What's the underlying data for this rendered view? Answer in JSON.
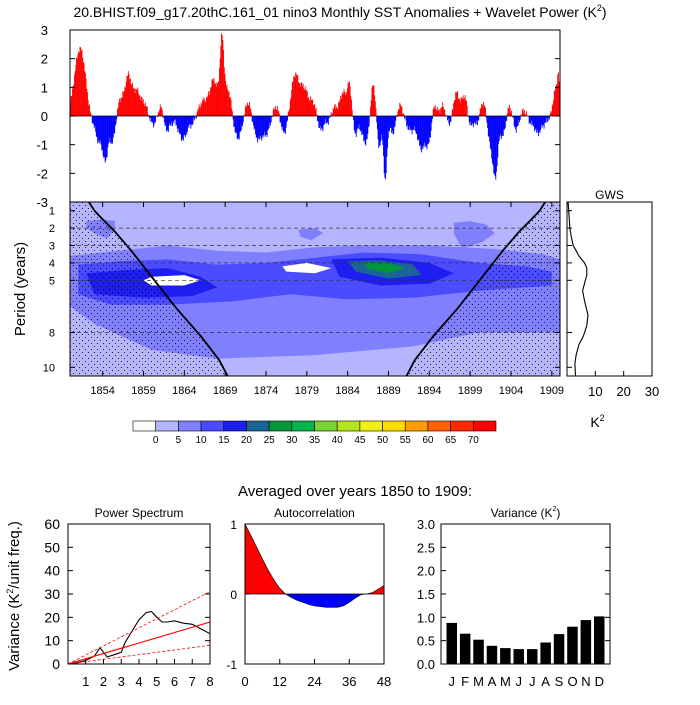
{
  "title": "20.BHIST.f09_g17.20thC.161_01 nino3 Monthly SST Anomalies + Wavelet Power (K",
  "title_sup": "2",
  "title_end": ")",
  "chart_data": [
    {
      "id": "sst_anomalies",
      "type": "area",
      "title": "nino3 Monthly SST Anomalies",
      "xlim": [
        1850,
        1910
      ],
      "ylim": [
        -3,
        3
      ],
      "yticks": [
        3,
        2,
        1,
        0,
        -1,
        -2,
        -3
      ],
      "positive_color": "#ff0000",
      "negative_color": "#0000ff",
      "events": [
        [
          1850.4,
          0.25,
          0.6
        ],
        [
          1850.9,
          1.0,
          0.7
        ],
        [
          1851.5,
          1.7,
          0.8
        ],
        [
          1852.6,
          -0.25,
          0.7
        ],
        [
          1853.5,
          -0.8,
          0.5
        ],
        [
          1854.3,
          -1.5,
          0.45
        ],
        [
          1855.2,
          -0.9,
          0.5
        ],
        [
          1856.2,
          0.6,
          0.6
        ],
        [
          1857.1,
          1.2,
          0.5
        ],
        [
          1858.1,
          0.9,
          0.8
        ],
        [
          1859.2,
          0.3,
          0.5
        ],
        [
          1860.2,
          -0.3,
          0.6
        ],
        [
          1861.1,
          0.35,
          0.5
        ],
        [
          1861.8,
          -0.55,
          0.4
        ],
        [
          1862.4,
          -0.2,
          0.3
        ],
        [
          1863.8,
          -0.8,
          0.8
        ],
        [
          1865.0,
          -0.2,
          0.4
        ],
        [
          1866.3,
          0.5,
          0.7
        ],
        [
          1867.6,
          1.25,
          0.7
        ],
        [
          1868.6,
          2.5,
          0.35
        ],
        [
          1869.4,
          1.0,
          0.6
        ],
        [
          1870.5,
          -0.8,
          0.8
        ],
        [
          1871.8,
          0.6,
          0.6
        ],
        [
          1873.0,
          -0.8,
          0.8
        ],
        [
          1874.1,
          -0.5,
          0.6
        ],
        [
          1875.2,
          0.35,
          0.5
        ],
        [
          1876.2,
          -0.6,
          0.5
        ],
        [
          1877.5,
          1.3,
          0.6
        ],
        [
          1878.6,
          1.0,
          0.8
        ],
        [
          1879.8,
          0.4,
          0.5
        ],
        [
          1880.7,
          -0.5,
          0.5
        ],
        [
          1881.6,
          -0.2,
          0.4
        ],
        [
          1882.4,
          0.3,
          0.5
        ],
        [
          1883.4,
          0.8,
          0.5
        ],
        [
          1884.2,
          1.1,
          0.4
        ],
        [
          1884.9,
          -0.6,
          0.4
        ],
        [
          1886.3,
          -1.0,
          0.8
        ],
        [
          1887.1,
          1.5,
          0.5
        ],
        [
          1887.8,
          -1.2,
          0.4
        ],
        [
          1888.6,
          -2.2,
          0.3
        ],
        [
          1889.5,
          -0.6,
          0.5
        ],
        [
          1890.4,
          0.4,
          0.5
        ],
        [
          1891.7,
          -0.5,
          0.7
        ],
        [
          1893.0,
          -1.1,
          0.6
        ],
        [
          1893.9,
          -0.9,
          0.5
        ],
        [
          1894.6,
          0.45,
          0.4
        ],
        [
          1895.6,
          0.35,
          0.4
        ],
        [
          1896.5,
          -0.3,
          0.4
        ],
        [
          1897.3,
          0.8,
          0.5
        ],
        [
          1898.3,
          0.7,
          0.5
        ],
        [
          1899.0,
          -0.4,
          0.4
        ],
        [
          1899.8,
          -0.3,
          0.4
        ],
        [
          1900.6,
          0.5,
          0.5
        ],
        [
          1901.5,
          -1.0,
          0.5
        ],
        [
          1902.1,
          -1.9,
          0.4
        ],
        [
          1903.0,
          -0.7,
          0.5
        ],
        [
          1903.8,
          0.4,
          0.5
        ],
        [
          1904.6,
          -0.5,
          0.5
        ],
        [
          1905.5,
          0.2,
          0.5
        ],
        [
          1906.4,
          -0.2,
          0.4
        ],
        [
          1907.3,
          -0.6,
          0.6
        ],
        [
          1908.2,
          -0.2,
          0.4
        ],
        [
          1909.4,
          0.9,
          0.35
        ],
        [
          1909.8,
          1.3,
          0.2
        ]
      ]
    },
    {
      "id": "wavelet_power",
      "type": "heatmap",
      "ylabel": "Period (years)",
      "xlim": [
        1850,
        1910
      ],
      "ylim": [
        0.5,
        10.5
      ],
      "xticks": [
        1854,
        1859,
        1864,
        1869,
        1874,
        1879,
        1884,
        1889,
        1894,
        1899,
        1904,
        1909
      ],
      "yticks": [
        1,
        2,
        3,
        4,
        5,
        8,
        10
      ],
      "dashed_levels": [
        2,
        3,
        4,
        5,
        8
      ],
      "power_regions": [
        {
          "level": 5,
          "polygon": [
            [
              1850,
              3.6
            ],
            [
              1856,
              3.3
            ],
            [
              1862,
              3.0
            ],
            [
              1868,
              3.3
            ],
            [
              1874,
              3.4
            ],
            [
              1880,
              3.1
            ],
            [
              1886,
              3.0
            ],
            [
              1894,
              3.0
            ],
            [
              1902,
              3.2
            ],
            [
              1908,
              3.5
            ],
            [
              1910,
              3.8
            ],
            [
              1910,
              8.0
            ],
            [
              1900,
              8.0
            ],
            [
              1892,
              8.8
            ],
            [
              1880,
              9.3
            ],
            [
              1868,
              9.5
            ],
            [
              1860,
              9.0
            ],
            [
              1853,
              7.5
            ],
            [
              1850,
              6.5
            ]
          ]
        },
        {
          "level": 5,
          "polygon": [
            [
              1852,
              1.6
            ],
            [
              1854,
              1.5
            ],
            [
              1855.5,
              1.6
            ],
            [
              1855.5,
              2.1
            ],
            [
              1854.5,
              2.6
            ],
            [
              1853,
              2.3
            ],
            [
              1852,
              2.0
            ]
          ]
        },
        {
          "level": 5,
          "polygon": [
            [
              1878,
              2.1
            ],
            [
              1880,
              2.0
            ],
            [
              1881,
              2.3
            ],
            [
              1879.5,
              2.7
            ],
            [
              1878.2,
              2.5
            ]
          ]
        },
        {
          "level": 5,
          "polygon": [
            [
              1897,
              1.7
            ],
            [
              1899,
              1.6
            ],
            [
              1901,
              1.8
            ],
            [
              1902,
              2.3
            ],
            [
              1900.5,
              2.8
            ],
            [
              1898,
              3.2
            ],
            [
              1897,
              2.3
            ]
          ]
        },
        {
          "level": 10,
          "polygon": [
            [
              1851,
              4.1
            ],
            [
              1856,
              3.9
            ],
            [
              1862,
              3.8
            ],
            [
              1868,
              4.1
            ],
            [
              1874,
              4.0
            ],
            [
              1880,
              3.7
            ],
            [
              1886,
              3.4
            ],
            [
              1893,
              3.5
            ],
            [
              1900,
              4.0
            ],
            [
              1906,
              4.2
            ],
            [
              1909,
              4.5
            ],
            [
              1909,
              5.3
            ],
            [
              1900,
              5.6
            ],
            [
              1892,
              6.0
            ],
            [
              1884,
              6.1
            ],
            [
              1877,
              5.8
            ],
            [
              1870,
              6.2
            ],
            [
              1862,
              6.4
            ],
            [
              1855,
              6.4
            ],
            [
              1851,
              5.8
            ]
          ]
        },
        {
          "level": 15,
          "polygon": [
            [
              1852,
              4.6
            ],
            [
              1857,
              4.4
            ],
            [
              1862,
              4.3
            ],
            [
              1866,
              4.8
            ],
            [
              1868,
              5.4
            ],
            [
              1865,
              5.9
            ],
            [
              1859,
              6.0
            ],
            [
              1853,
              5.8
            ]
          ]
        },
        {
          "level": 15,
          "polygon": [
            [
              1882,
              3.8
            ],
            [
              1888,
              3.7
            ],
            [
              1894,
              4.0
            ],
            [
              1897,
              4.6
            ],
            [
              1894,
              5.2
            ],
            [
              1888,
              5.3
            ],
            [
              1883,
              4.8
            ]
          ]
        },
        {
          "level": 20,
          "polygon": [
            [
              1884,
              3.9
            ],
            [
              1888,
              3.85
            ],
            [
              1892,
              4.1
            ],
            [
              1893,
              4.7
            ],
            [
              1889,
              4.9
            ],
            [
              1885,
              4.5
            ]
          ]
        },
        {
          "level": 25,
          "polygon": [
            [
              1886,
              4.0
            ],
            [
              1889,
              4.0
            ],
            [
              1891,
              4.3
            ],
            [
              1889,
              4.6
            ],
            [
              1886.5,
              4.35
            ]
          ]
        }
      ],
      "light_islands": [
        {
          "polygon": [
            [
              1860,
              4.8
            ],
            [
              1864,
              4.7
            ],
            [
              1866,
              5.0
            ],
            [
              1864,
              5.3
            ],
            [
              1860,
              5.3
            ],
            [
              1859,
              5.0
            ]
          ]
        },
        {
          "polygon": [
            [
              1876,
              4.2
            ],
            [
              1879,
              4.0
            ],
            [
              1882,
              4.3
            ],
            [
              1880,
              4.6
            ],
            [
              1876.5,
              4.5
            ]
          ]
        }
      ],
      "cone_of_influence": {
        "left": [
          [
            1852.3,
            0.5
          ],
          [
            1853,
            1.0
          ],
          [
            1854,
            1.5
          ],
          [
            1855.5,
            2.2
          ],
          [
            1857.5,
            3.3
          ],
          [
            1860,
            4.8
          ],
          [
            1863,
            6.6
          ],
          [
            1866,
            8.2
          ],
          [
            1868.3,
            9.6
          ],
          [
            1869.3,
            10.5
          ]
        ],
        "right": [
          [
            1908.2,
            0.5
          ],
          [
            1907.5,
            1.0
          ],
          [
            1906.5,
            1.5
          ],
          [
            1905,
            2.2
          ],
          [
            1903,
            3.3
          ],
          [
            1900.5,
            4.8
          ],
          [
            1897.5,
            6.6
          ],
          [
            1894.5,
            8.2
          ],
          [
            1892.2,
            9.6
          ],
          [
            1891.2,
            10.5
          ]
        ]
      }
    },
    {
      "id": "global_wavelet_spectrum",
      "type": "line",
      "title": "GWS",
      "xlabel": "K",
      "xlabel_sup": "2",
      "xlim": [
        0,
        30
      ],
      "xticks": [
        10,
        20,
        30
      ],
      "ylim": [
        0.5,
        10.5
      ],
      "x": [
        0.4,
        0.6,
        0.8,
        1.0,
        1.5,
        2.2,
        3.2,
        4.2,
        5.2,
        6.2,
        7.0,
        7.0,
        6.3,
        5.5,
        6.2,
        7.4,
        7.0,
        5.8,
        4.2,
        3.2,
        2.8,
        3.0
      ],
      "y": [
        0.5,
        1.0,
        1.5,
        2.0,
        2.5,
        3.0,
        3.3,
        3.6,
        3.8,
        4.0,
        4.3,
        4.7,
        5.1,
        5.6,
        6.2,
        7.0,
        7.6,
        8.2,
        8.7,
        9.3,
        9.8,
        10.5
      ]
    },
    {
      "id": "colorbar",
      "type": "colorbar",
      "labels": [
        "0",
        "5",
        "10",
        "15",
        "20",
        "25",
        "30",
        "35",
        "40",
        "45",
        "50",
        "55",
        "60",
        "65",
        "70"
      ],
      "colors": [
        "#ffffff",
        "#b4b4ff",
        "#8080ff",
        "#4b4bff",
        "#1e1ef0",
        "#1a6496",
        "#00963c",
        "#00b44b",
        "#78d232",
        "#b4e61e",
        "#f0f014",
        "#ffdc00",
        "#ffa000",
        "#ff6400",
        "#ff2800",
        "#ff0000"
      ]
    },
    {
      "id": "power_spectrum",
      "type": "line",
      "title": "Power Spectrum",
      "ylabel": "Variance (K",
      "ylabel_sup": "2",
      "ylabel_end": "/unit freq.)",
      "xlim": [
        0,
        8
      ],
      "ylim": [
        0,
        60
      ],
      "xticks": [
        1,
        2,
        3,
        4,
        5,
        6,
        7,
        8
      ],
      "yticks": [
        0,
        10,
        20,
        30,
        40,
        50,
        60
      ],
      "series": [
        {
          "name": "spectrum",
          "color": "#000000",
          "x": [
            0,
            0.5,
            1,
            1.5,
            1.8,
            2,
            2.2,
            2.6,
            3,
            3.2,
            3.6,
            4,
            4.4,
            4.7,
            5,
            5.3,
            5.6,
            6,
            6.5,
            7,
            7.5,
            8
          ],
          "y": [
            0,
            0.5,
            1.5,
            3.5,
            7,
            5,
            3,
            4,
            5,
            9,
            14,
            19,
            22,
            22.5,
            20,
            18,
            18,
            18.5,
            17.5,
            17,
            15,
            13
          ]
        },
        {
          "name": "red-noise",
          "color": "#ff0000",
          "x": [
            0,
            8
          ],
          "y": [
            0,
            18
          ]
        },
        {
          "name": "upper-confidence",
          "color": "#ff0000",
          "dashed": true,
          "x": [
            0,
            8
          ],
          "y": [
            0,
            31
          ]
        },
        {
          "name": "lower-confidence",
          "color": "#ff0000",
          "dashed": true,
          "x": [
            0,
            8
          ],
          "y": [
            0,
            8
          ]
        }
      ]
    },
    {
      "id": "autocorrelation",
      "type": "area",
      "title": "Autocorrelation",
      "xlim": [
        0,
        48
      ],
      "ylim": [
        -1,
        1
      ],
      "xticks": [
        0,
        12,
        24,
        36,
        48
      ],
      "yticks": [
        1,
        0,
        -1
      ],
      "x": [
        0,
        2,
        4,
        6,
        8,
        10,
        12,
        14,
        16,
        18,
        20,
        22,
        24,
        26,
        28,
        30,
        32,
        34,
        36,
        38,
        40,
        42,
        44,
        46,
        48
      ],
      "values": [
        1.0,
        0.84,
        0.67,
        0.5,
        0.34,
        0.2,
        0.08,
        0.0,
        -0.05,
        -0.09,
        -0.12,
        -0.15,
        -0.17,
        -0.18,
        -0.19,
        -0.19,
        -0.19,
        -0.17,
        -0.12,
        -0.06,
        -0.01,
        0.0,
        0.02,
        0.07,
        0.12
      ],
      "positive_color": "#ff0000",
      "negative_color": "#0000ff"
    },
    {
      "id": "monthly_variance",
      "type": "bar",
      "title": "Variance (K",
      "title_sup": "2",
      "title_end": ")",
      "ylim": [
        0,
        3
      ],
      "yticks": [
        "0.0",
        "0.5",
        "1.0",
        "1.5",
        "2.0",
        "2.5",
        "3.0"
      ],
      "categories": [
        "J",
        "F",
        "M",
        "A",
        "M",
        "J",
        "J",
        "A",
        "S",
        "O",
        "N",
        "D"
      ],
      "values": [
        0.88,
        0.65,
        0.52,
        0.39,
        0.34,
        0.32,
        0.32,
        0.46,
        0.64,
        0.8,
        0.94,
        1.02
      ]
    }
  ],
  "average_note": "Averaged over years 1850 to 1909:"
}
